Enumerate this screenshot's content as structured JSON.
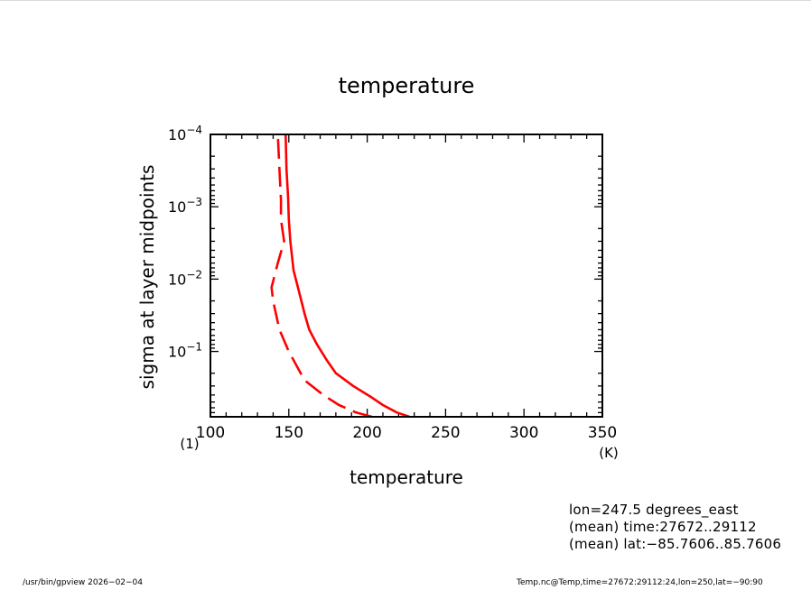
{
  "chart_data": {
    "type": "line",
    "title": "temperature",
    "xlabel": "temperature",
    "xunit": "(K)",
    "ylabel": "sigma at layer midpoints",
    "yunit": "(1)",
    "xlim": [
      100,
      350
    ],
    "ylim": [
      0.8,
      0.0001
    ],
    "yscale": "log",
    "x_ticks": [
      "100",
      "150",
      "200",
      "250",
      "300",
      "350"
    ],
    "y_ticks": [
      {
        "base": "10",
        "exp": "−4",
        "value": 0.0001
      },
      {
        "base": "10",
        "exp": "−3",
        "value": 0.001
      },
      {
        "base": "10",
        "exp": "−2",
        "value": 0.01
      },
      {
        "base": "10",
        "exp": "−1",
        "value": 0.1
      }
    ],
    "line_color": "#ff0000",
    "series": [
      {
        "style": "solid",
        "points": [
          [
            227,
            0.8
          ],
          [
            219,
            0.7
          ],
          [
            210,
            0.55
          ],
          [
            202,
            0.42
          ],
          [
            191,
            0.3
          ],
          [
            180,
            0.2
          ],
          [
            174,
            0.13
          ],
          [
            168,
            0.08
          ],
          [
            163,
            0.05
          ],
          [
            160,
            0.03
          ],
          [
            158,
            0.02
          ],
          [
            153,
            0.0075
          ],
          [
            151,
            0.003
          ],
          [
            150,
            0.0015
          ],
          [
            149.5,
            0.0007
          ],
          [
            148.5,
            0.0003
          ],
          [
            148,
            0.0001
          ]
        ]
      },
      {
        "style": "dashed",
        "points": [
          [
            203,
            0.8
          ],
          [
            193,
            0.7
          ],
          [
            182,
            0.55
          ],
          [
            172,
            0.4
          ],
          [
            160,
            0.25
          ],
          [
            150,
            0.1
          ],
          [
            144,
            0.05
          ],
          [
            140,
            0.02
          ],
          [
            139,
            0.013
          ],
          [
            143,
            0.006
          ],
          [
            147,
            0.003
          ],
          [
            145,
            0.0015
          ],
          [
            145,
            0.0008
          ],
          [
            144,
            0.0003
          ],
          [
            143,
            0.0001
          ]
        ]
      }
    ]
  },
  "info": {
    "lon": "lon=247.5 degrees_east",
    "time": "(mean) time:27672..29112",
    "lat": "(mean) lat:−85.7606..85.7606"
  },
  "footer": {
    "left": "/usr/bin/gpview   2026−02−04",
    "right": "Temp.nc@Temp,time=27672:29112:24,lon=250,lat=−90:90"
  }
}
